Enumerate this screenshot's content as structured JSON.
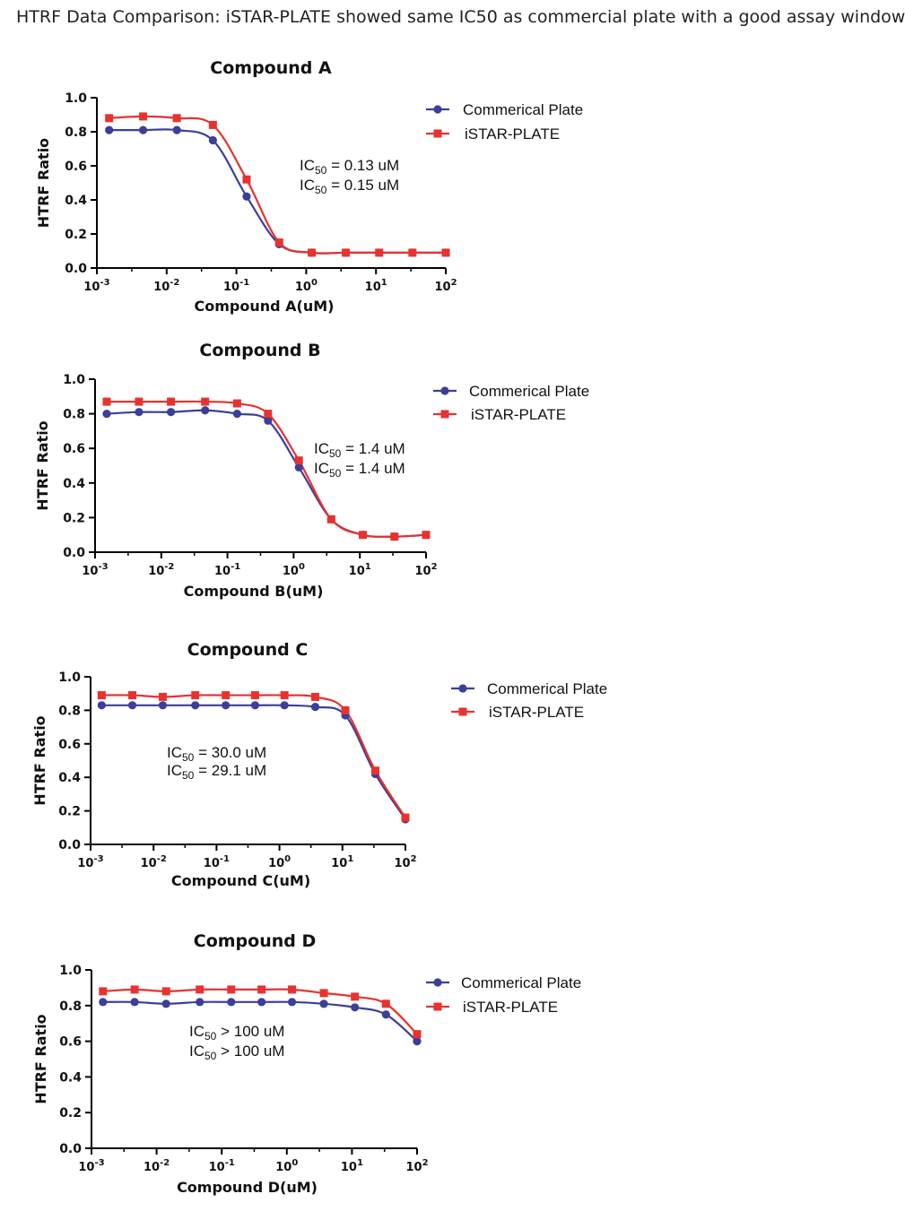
{
  "header": "HTRF Data Comparison: iSTAR-PLATE showed same IC50 as commercial plate with a good assay window",
  "colors": {
    "commercial": "#3b3f98",
    "istar": "#e8322f"
  },
  "chart_data": [
    {
      "type": "line",
      "xscale": "log",
      "title": "Compound A",
      "xlabel": "Compound A(uM)",
      "ylabel": "HTRF Ratio",
      "xlim": [
        0.001,
        100
      ],
      "ylim": [
        0,
        1.0
      ],
      "yticks": [
        "0.0",
        "0.2",
        "0.4",
        "0.6",
        "0.8",
        "1.0"
      ],
      "xticks": [
        "10",
        "10",
        "10",
        "10",
        "10",
        "10"
      ],
      "xtick_exp": [
        "-3",
        "-2",
        "-1",
        "0",
        "1",
        "2"
      ],
      "legend": "top-right",
      "series": [
        {
          "name": "Commerical Plate",
          "marker": "circle",
          "x": [
            0.0015,
            0.0046,
            0.014,
            0.046,
            0.14,
            0.41,
            1.2,
            3.7,
            11.1,
            33.3,
            100
          ],
          "y": [
            0.81,
            0.81,
            0.81,
            0.75,
            0.42,
            0.14,
            0.09,
            0.09,
            0.09,
            0.09,
            0.09
          ]
        },
        {
          "name": "iSTAR-PLATE",
          "marker": "square",
          "x": [
            0.0015,
            0.0046,
            0.014,
            0.046,
            0.14,
            0.41,
            1.2,
            3.7,
            11.1,
            33.3,
            100
          ],
          "y": [
            0.88,
            0.89,
            0.88,
            0.84,
            0.52,
            0.15,
            0.09,
            0.09,
            0.09,
            0.09,
            0.09
          ]
        }
      ],
      "ic50": [
        "0.13 uM",
        "0.15 uM"
      ],
      "ic_relation": [
        "=",
        "="
      ]
    },
    {
      "type": "line",
      "xscale": "log",
      "title": "Compound B",
      "xlabel": "Compound B(uM)",
      "ylabel": "HTRF Ratio",
      "xlim": [
        0.001,
        100
      ],
      "ylim": [
        0,
        1.0
      ],
      "yticks": [
        "0.0",
        "0.2",
        "0.4",
        "0.6",
        "0.8",
        "1.0"
      ],
      "xticks": [
        "10",
        "10",
        "10",
        "10",
        "10",
        "10"
      ],
      "xtick_exp": [
        "-3",
        "-2",
        "-1",
        "0",
        "1",
        "2"
      ],
      "legend": "top-right",
      "series": [
        {
          "name": "Commerical Plate",
          "marker": "circle",
          "x": [
            0.0015,
            0.0046,
            0.014,
            0.046,
            0.14,
            0.41,
            1.2,
            3.7,
            11.1,
            33.3,
            100
          ],
          "y": [
            0.8,
            0.81,
            0.81,
            0.82,
            0.8,
            0.76,
            0.49,
            0.19,
            0.1,
            0.09,
            0.1
          ]
        },
        {
          "name": "iSTAR-PLATE",
          "marker": "square",
          "x": [
            0.0015,
            0.0046,
            0.014,
            0.046,
            0.14,
            0.41,
            1.2,
            3.7,
            11.1,
            33.3,
            100
          ],
          "y": [
            0.87,
            0.87,
            0.87,
            0.87,
            0.86,
            0.8,
            0.53,
            0.19,
            0.1,
            0.09,
            0.1
          ]
        }
      ],
      "ic50": [
        "1.4 uM",
        "1.4 uM"
      ],
      "ic_relation": [
        "=",
        "="
      ]
    },
    {
      "type": "line",
      "xscale": "log",
      "title": "Compound C",
      "xlabel": "Compound C(uM)",
      "ylabel": "HTRF Ratio",
      "xlim": [
        0.001,
        100
      ],
      "ylim": [
        0,
        1.0
      ],
      "yticks": [
        "0.0",
        "0.2",
        "0.4",
        "0.6",
        "0.8",
        "1.0"
      ],
      "xticks": [
        "10",
        "10",
        "10",
        "10",
        "10",
        "10"
      ],
      "xtick_exp": [
        "-3",
        "-2",
        "-1",
        "0",
        "1",
        "2"
      ],
      "legend": "top-right",
      "series": [
        {
          "name": "Commerical Plate",
          "marker": "circle",
          "x": [
            0.0015,
            0.0046,
            0.014,
            0.046,
            0.14,
            0.41,
            1.2,
            3.7,
            11.1,
            33.3,
            100
          ],
          "y": [
            0.83,
            0.83,
            0.83,
            0.83,
            0.83,
            0.83,
            0.83,
            0.82,
            0.77,
            0.42,
            0.15
          ]
        },
        {
          "name": "iSTAR-PLATE",
          "marker": "square",
          "x": [
            0.0015,
            0.0046,
            0.014,
            0.046,
            0.14,
            0.41,
            1.2,
            3.7,
            11.1,
            33.3,
            100
          ],
          "y": [
            0.89,
            0.89,
            0.88,
            0.89,
            0.89,
            0.89,
            0.89,
            0.88,
            0.8,
            0.44,
            0.16
          ]
        }
      ],
      "ic50": [
        "30.0 uM",
        "29.1 uM"
      ],
      "ic_relation": [
        "=",
        "="
      ]
    },
    {
      "type": "line",
      "xscale": "log",
      "title": "Compound D",
      "xlabel": "Compound D(uM)",
      "ylabel": "HTRF Ratio",
      "xlim": [
        0.001,
        100
      ],
      "ylim": [
        0,
        1.0
      ],
      "yticks": [
        "0.0",
        "0.2",
        "0.4",
        "0.6",
        "0.8",
        "1.0"
      ],
      "xticks": [
        "10",
        "10",
        "10",
        "10",
        "10",
        "10"
      ],
      "xtick_exp": [
        "-3",
        "-2",
        "-1",
        "0",
        "1",
        "2"
      ],
      "legend": "top-right",
      "series": [
        {
          "name": "Commerical Plate",
          "marker": "circle",
          "x": [
            0.0015,
            0.0046,
            0.014,
            0.046,
            0.14,
            0.41,
            1.2,
            3.7,
            11.1,
            33.3,
            100
          ],
          "y": [
            0.82,
            0.82,
            0.81,
            0.82,
            0.82,
            0.82,
            0.82,
            0.81,
            0.79,
            0.75,
            0.6
          ]
        },
        {
          "name": "iSTAR-PLATE",
          "marker": "square",
          "x": [
            0.0015,
            0.0046,
            0.014,
            0.046,
            0.14,
            0.41,
            1.2,
            3.7,
            11.1,
            33.3,
            100
          ],
          "y": [
            0.88,
            0.89,
            0.88,
            0.89,
            0.89,
            0.89,
            0.89,
            0.87,
            0.85,
            0.81,
            0.64
          ]
        }
      ],
      "ic50": [
        "100 uM",
        "100 uM"
      ],
      "ic_relation": [
        ">",
        ">"
      ]
    }
  ]
}
